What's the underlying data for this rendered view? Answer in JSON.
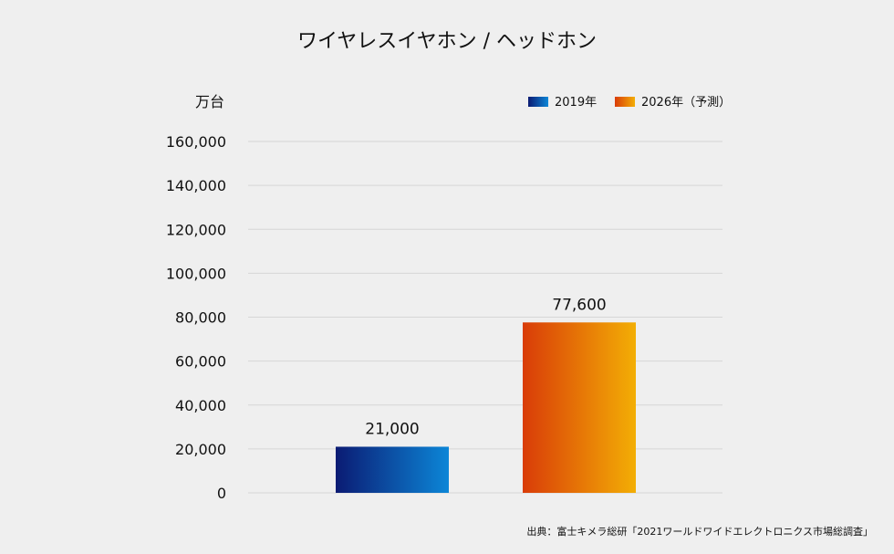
{
  "chart_data": {
    "type": "bar",
    "title": "ワイヤレスイヤホン / ヘッドホン",
    "ylabel": "万台",
    "xlabel": "",
    "categories": [
      "2019年",
      "2026年（予測）"
    ],
    "values": [
      21000,
      77600
    ],
    "value_labels": [
      "21,000",
      "77,600"
    ],
    "ylim": [
      0,
      160000
    ],
    "yticks": [
      0,
      20000,
      40000,
      60000,
      80000,
      100000,
      120000,
      140000,
      160000
    ],
    "ytick_labels": [
      "0",
      "20,000",
      "40,000",
      "60,000",
      "80,000",
      "100,000",
      "120,000",
      "140,000",
      "160,000"
    ],
    "grid": true,
    "legend_position": "top-right",
    "series_colors": [
      {
        "from": "#0b1b73",
        "to": "#0c86d7"
      },
      {
        "from": "#d93c08",
        "to": "#f3ae05"
      }
    ]
  },
  "source_text": "出典：富士キメラ総研「2021ワールドワイドエレクトロニクス市場総調査」"
}
